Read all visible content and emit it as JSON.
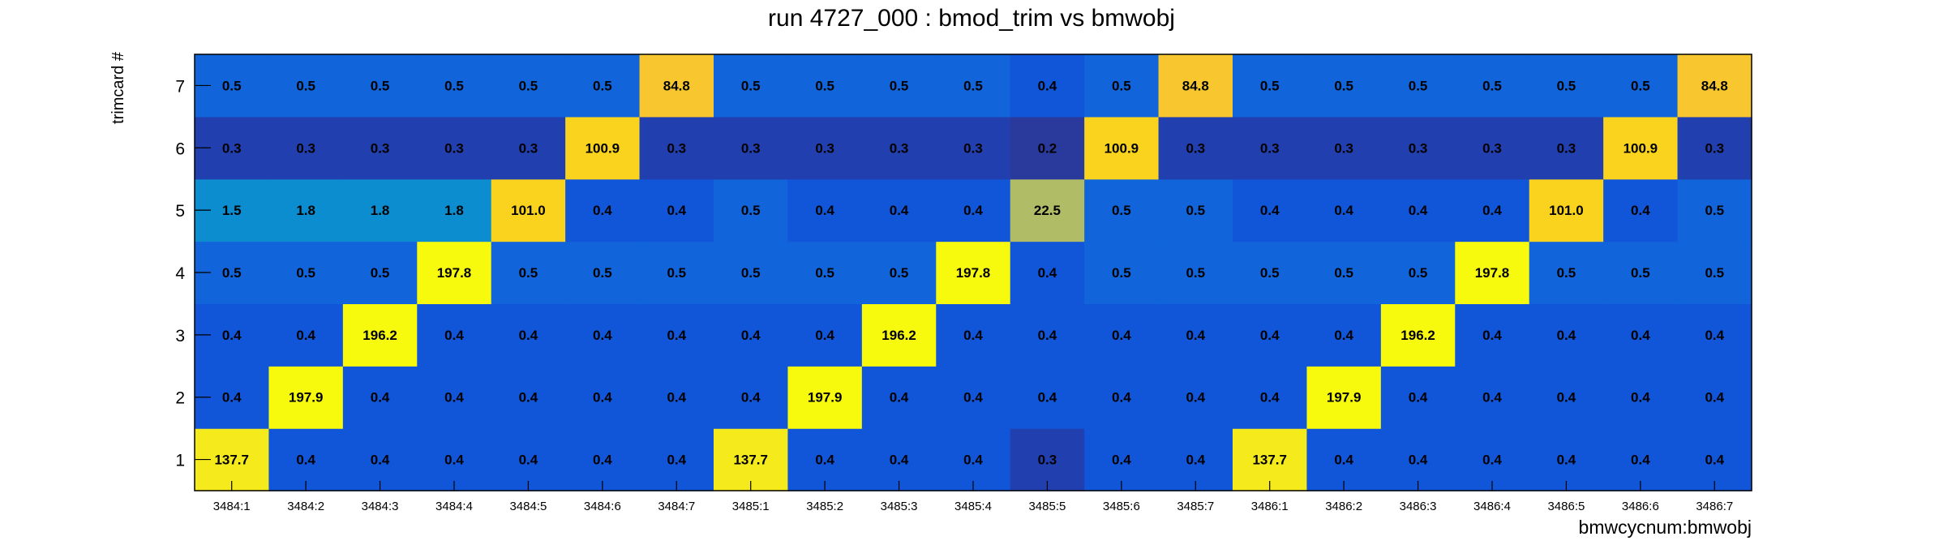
{
  "chart_data": {
    "type": "heatmap",
    "title": "run 4727_000 : bmod_trim vs bmwobj",
    "xlabel": "bmwcycnum:bmwobj",
    "ylabel": "trimcard #",
    "x_categories": [
      "3484:1",
      "3484:2",
      "3484:3",
      "3484:4",
      "3484:5",
      "3484:6",
      "3484:7",
      "3485:1",
      "3485:2",
      "3485:3",
      "3485:4",
      "3485:5",
      "3485:6",
      "3485:7",
      "3486:1",
      "3486:2",
      "3486:3",
      "3486:4",
      "3486:5",
      "3486:6",
      "3486:7"
    ],
    "y_categories": [
      "1",
      "2",
      "3",
      "4",
      "5",
      "6",
      "7"
    ],
    "values_by_row": [
      [
        "137.7",
        "0.4",
        "0.4",
        "0.4",
        "0.4",
        "0.4",
        "0.4",
        "137.7",
        "0.4",
        "0.4",
        "0.4",
        "0.3",
        "0.4",
        "0.4",
        "137.7",
        "0.4",
        "0.4",
        "0.4",
        "0.4",
        "0.4",
        "0.4"
      ],
      [
        "0.4",
        "197.9",
        "0.4",
        "0.4",
        "0.4",
        "0.4",
        "0.4",
        "0.4",
        "197.9",
        "0.4",
        "0.4",
        "0.4",
        "0.4",
        "0.4",
        "0.4",
        "197.9",
        "0.4",
        "0.4",
        "0.4",
        "0.4",
        "0.4"
      ],
      [
        "0.4",
        "0.4",
        "196.2",
        "0.4",
        "0.4",
        "0.4",
        "0.4",
        "0.4",
        "0.4",
        "196.2",
        "0.4",
        "0.4",
        "0.4",
        "0.4",
        "0.4",
        "0.4",
        "196.2",
        "0.4",
        "0.4",
        "0.4",
        "0.4"
      ],
      [
        "0.5",
        "0.5",
        "0.5",
        "197.8",
        "0.5",
        "0.5",
        "0.5",
        "0.5",
        "0.5",
        "0.5",
        "197.8",
        "0.4",
        "0.5",
        "0.5",
        "0.5",
        "0.5",
        "0.5",
        "197.8",
        "0.5",
        "0.5",
        "0.5"
      ],
      [
        "1.5",
        "1.8",
        "1.8",
        "1.8",
        "101.0",
        "0.4",
        "0.4",
        "0.5",
        "0.4",
        "0.4",
        "0.4",
        "22.5",
        "0.5",
        "0.5",
        "0.4",
        "0.4",
        "0.4",
        "0.4",
        "101.0",
        "0.4",
        "0.5"
      ],
      [
        "0.3",
        "0.3",
        "0.3",
        "0.3",
        "0.3",
        "100.9",
        "0.3",
        "0.3",
        "0.3",
        "0.3",
        "0.3",
        "0.2",
        "100.9",
        "0.3",
        "0.3",
        "0.3",
        "0.3",
        "0.3",
        "0.3",
        "100.9",
        "0.3"
      ],
      [
        "0.5",
        "0.5",
        "0.5",
        "0.5",
        "0.5",
        "0.5",
        "84.8",
        "0.5",
        "0.5",
        "0.5",
        "0.5",
        "0.4",
        "0.5",
        "84.8",
        "0.5",
        "0.5",
        "0.5",
        "0.5",
        "0.5",
        "0.5",
        "84.8"
      ]
    ]
  }
}
